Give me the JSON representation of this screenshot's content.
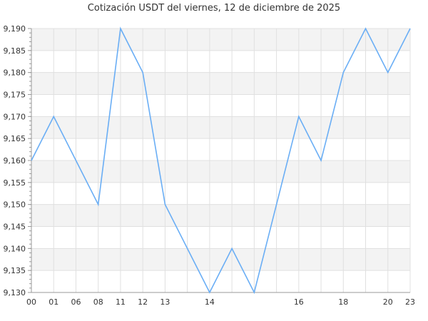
{
  "chart_data": {
    "type": "line",
    "title": "Cotización USDT del viernes, 12 de diciembre de 2025",
    "xlabel": "",
    "ylabel": "",
    "x_tick_labels": [
      "00",
      "01",
      "06",
      "08",
      "11",
      "12",
      "13",
      "",
      "14",
      "",
      "",
      "",
      "16",
      "",
      "18",
      "",
      "20",
      "23"
    ],
    "values": [
      9.16,
      9.17,
      9.16,
      9.15,
      9.19,
      9.18,
      9.15,
      9.14,
      9.13,
      9.14,
      9.13,
      9.15,
      9.17,
      9.16,
      9.18,
      9.19,
      9.18,
      9.19
    ],
    "ylim": [
      9.13,
      9.19
    ],
    "y_ticks": [
      "9,130",
      "9,135",
      "9,140",
      "9,145",
      "9,150",
      "9,155",
      "9,160",
      "9,165",
      "9,170",
      "9,175",
      "9,180",
      "9,185",
      "9,190"
    ],
    "grid": true,
    "alternating_bands": true,
    "colors": {
      "line": "#6aaef5",
      "band": "#f3f3f3",
      "grid": "#e0e0e0",
      "axis": "#999999"
    }
  }
}
